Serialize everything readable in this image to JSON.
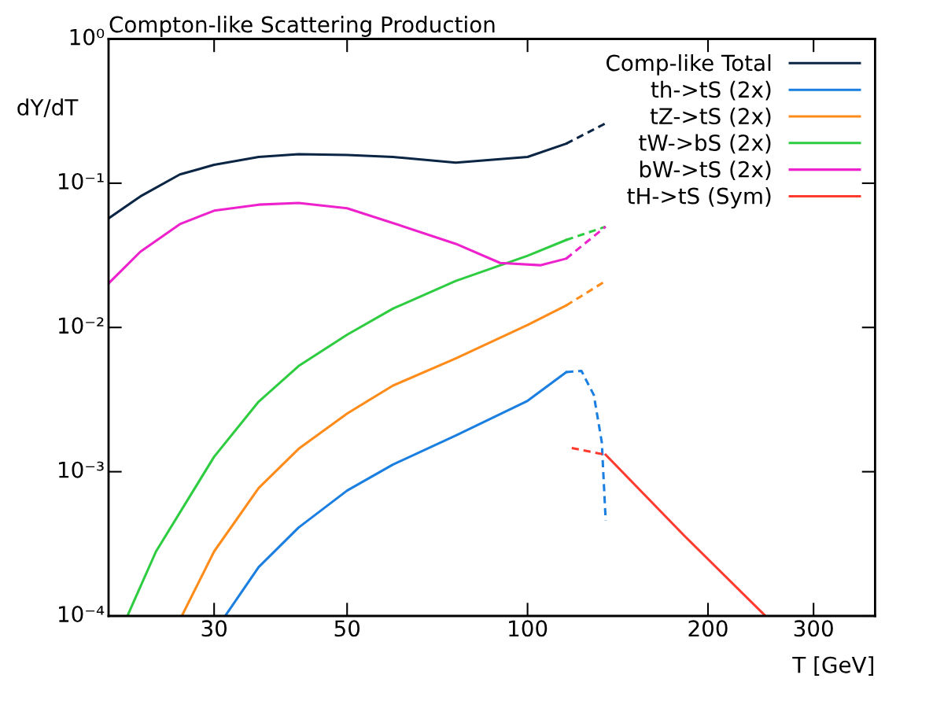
{
  "chart_data": {
    "type": "line",
    "title": "Compton-like Scattering Production",
    "xlabel": "T [GeV]",
    "ylabel": "dY/dT",
    "log": "xy",
    "grid": false,
    "legend": "top right",
    "xlim": [
      20,
      380
    ],
    "xticks": [
      30,
      50,
      100,
      200,
      300
    ],
    "ylim": [
      0.0001,
      1
    ],
    "yticks": [
      {
        "value": 0.0001,
        "label": "10⁻⁴"
      },
      {
        "value": 0.001,
        "label": "10⁻³"
      },
      {
        "value": 0.01,
        "label": "10⁻²"
      },
      {
        "value": 0.1,
        "label": "10⁻¹"
      },
      {
        "value": 1,
        "label": "10⁰"
      }
    ],
    "series": [
      {
        "name": "Comp-like Total",
        "color": "#0b2545",
        "line_style": "solid",
        "x": [
          20,
          22.6,
          26.3,
          30,
          35.6,
          41.5,
          50,
          59.6,
          75.9,
          100,
          116
        ],
        "values": [
          0.057,
          0.081,
          0.115,
          0.134,
          0.152,
          0.159,
          0.157,
          0.152,
          0.139,
          0.152,
          0.188
        ]
      },
      {
        "name": "th->tS (2x)",
        "color": "#1a7fe0",
        "line_style": "solid",
        "x": [
          31.3,
          35.6,
          41.5,
          50,
          59.6,
          75.9,
          100,
          116
        ],
        "values": [
          0.0001,
          0.000218,
          0.00041,
          0.00074,
          0.00112,
          0.00178,
          0.0031,
          0.0049
        ]
      },
      {
        "name": "tZ->tS (2x)",
        "color": "#ff8c1a",
        "line_style": "solid",
        "x": [
          26.5,
          30,
          35.6,
          41.5,
          50,
          59.6,
          75.9,
          100,
          116
        ],
        "values": [
          0.0001,
          0.00028,
          0.00077,
          0.00144,
          0.00253,
          0.00395,
          0.0061,
          0.0104,
          0.0142
        ]
      },
      {
        "name": "tW->bS (2x)",
        "color": "#2ecc40",
        "line_style": "solid",
        "x": [
          21.5,
          24.0,
          30,
          35.6,
          41.5,
          50,
          59.6,
          75.9,
          100,
          116
        ],
        "values": [
          0.0001,
          0.00028,
          0.00127,
          0.00306,
          0.0054,
          0.0089,
          0.0135,
          0.021,
          0.0314,
          0.0404
        ]
      },
      {
        "name": "bW->tS (2x)",
        "color": "#ee22cc",
        "line_style": "solid",
        "x": [
          20,
          22.6,
          26.3,
          30,
          35.6,
          41.5,
          50,
          59.6,
          75.9,
          90,
          105,
          116
        ],
        "values": [
          0.0202,
          0.0335,
          0.052,
          0.0645,
          0.071,
          0.073,
          0.067,
          0.053,
          0.038,
          0.028,
          0.027,
          0.03
        ]
      },
      {
        "name": "tH->tS (Sym)",
        "color": "#ff3b30",
        "line_style": "solid",
        "x": [
          135,
          182.6,
          249.4
        ],
        "values": [
          0.00131,
          0.00036,
          0.0001
        ]
      },
      {
        "color": "#0b2545",
        "line_style": "dashed",
        "x": [
          116,
          135
        ],
        "values": [
          0.188,
          0.26
        ]
      },
      {
        "color": "#1a7fe0",
        "line_style": "dashed",
        "x": [
          116,
          123,
          129,
          133,
          135
        ],
        "values": [
          0.0049,
          0.005,
          0.0034,
          0.0016,
          0.00046
        ]
      },
      {
        "color": "#ff8c1a",
        "line_style": "dashed",
        "x": [
          116,
          135
        ],
        "values": [
          0.0142,
          0.021
        ]
      },
      {
        "color": "#2ecc40",
        "line_style": "dashed",
        "x": [
          116,
          135
        ],
        "values": [
          0.0404,
          0.05
        ]
      },
      {
        "color": "#ee22cc",
        "line_style": "dashed",
        "x": [
          116,
          135
        ],
        "values": [
          0.03,
          0.05
        ]
      },
      {
        "color": "#ff3b30",
        "line_style": "dashed",
        "x": [
          118.5,
          135
        ],
        "values": [
          0.00146,
          0.00131
        ]
      }
    ]
  }
}
